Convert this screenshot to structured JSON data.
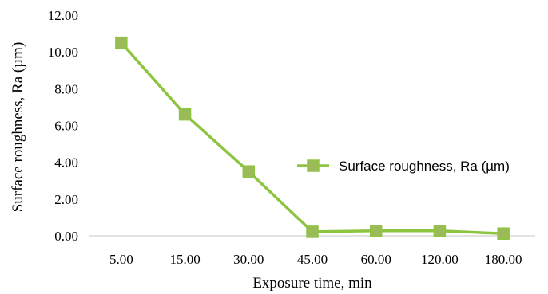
{
  "chart_data": {
    "type": "line",
    "categories": [
      "5.00",
      "15.00",
      "30.00",
      "45.00",
      "60.00",
      "120.00",
      "180.00"
    ],
    "series": [
      {
        "name": "Surface roughness, Ra (µm)",
        "values": [
          10.5,
          6.6,
          3.5,
          0.22,
          0.27,
          0.27,
          0.12
        ],
        "color": "#8dc540",
        "marker": "square",
        "marker_color": "#9bbb59"
      }
    ],
    "xlabel": "Exposure time, min",
    "ylabel": "Surface roughness, Ra (µm)",
    "ylim": [
      0,
      12
    ],
    "yticks": [
      "0.00",
      "2.00",
      "4.00",
      "6.00",
      "8.00",
      "10.00",
      "12.00"
    ],
    "grid": false,
    "legend_position": "right"
  }
}
